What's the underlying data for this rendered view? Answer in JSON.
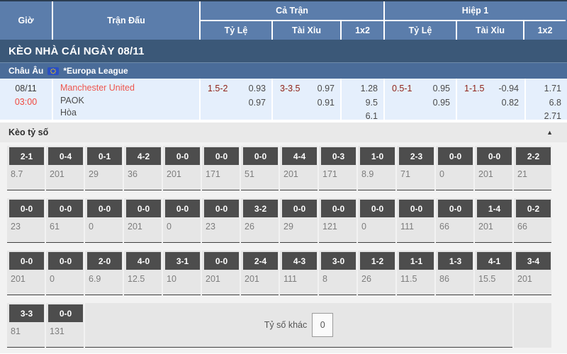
{
  "header": {
    "time_label": "Giờ",
    "match_label": "Trận Đấu",
    "groups": [
      {
        "label": "Cả Trận",
        "cols": [
          "Tỷ Lệ",
          "Tài Xỉu",
          "1x2"
        ]
      },
      {
        "label": "Hiệp 1",
        "cols": [
          "Tỷ Lệ",
          "Tài Xỉu",
          "1x2"
        ]
      }
    ]
  },
  "section_title": "KÈO NHÀ CÁI NGÀY 08/11",
  "league_bar": {
    "region": "Châu Âu",
    "flag_icon": "eu-flag-icon",
    "league": "*Europa League"
  },
  "match": {
    "date": "08/11",
    "time": "03:00",
    "teams": [
      "Manchester United",
      "PAOK",
      "Hòa"
    ],
    "full": {
      "handicap": {
        "line": "1.5-2",
        "odds": [
          "0.93",
          "0.97"
        ]
      },
      "ou": {
        "line": "3-3.5",
        "odds": [
          "0.97",
          "0.91"
        ]
      },
      "oneXtwo": [
        "1.28",
        "9.5",
        "6.1"
      ]
    },
    "half": {
      "handicap": {
        "line": "0.5-1",
        "odds": [
          "0.95",
          "0.95"
        ]
      },
      "ou": {
        "line": "1-1.5",
        "odds": [
          "-0.94",
          "0.82"
        ]
      },
      "oneXtwo": [
        "1.71",
        "6.8",
        "2.71"
      ]
    }
  },
  "score_section": {
    "title": "Kèo tỷ số",
    "collapse_icon": "▲",
    "rows": [
      [
        {
          "score": "2-1",
          "odds": "8.7"
        },
        {
          "score": "0-4",
          "odds": "201"
        },
        {
          "score": "0-1",
          "odds": "29"
        },
        {
          "score": "4-2",
          "odds": "36"
        },
        {
          "score": "0-0",
          "odds": "201"
        },
        {
          "score": "0-0",
          "odds": "171"
        },
        {
          "score": "0-0",
          "odds": "51"
        },
        {
          "score": "4-4",
          "odds": "201"
        },
        {
          "score": "0-3",
          "odds": "171"
        },
        {
          "score": "1-0",
          "odds": "8.9"
        },
        {
          "score": "2-3",
          "odds": "71"
        },
        {
          "score": "0-0",
          "odds": "0"
        },
        {
          "score": "0-0",
          "odds": "201"
        },
        {
          "score": "2-2",
          "odds": "21"
        }
      ],
      [
        {
          "score": "0-0",
          "odds": "23"
        },
        {
          "score": "0-0",
          "odds": "61"
        },
        {
          "score": "0-0",
          "odds": "0"
        },
        {
          "score": "0-0",
          "odds": "201"
        },
        {
          "score": "0-0",
          "odds": "0"
        },
        {
          "score": "0-0",
          "odds": "23"
        },
        {
          "score": "3-2",
          "odds": "26"
        },
        {
          "score": "0-0",
          "odds": "29"
        },
        {
          "score": "0-0",
          "odds": "121"
        },
        {
          "score": "0-0",
          "odds": "0"
        },
        {
          "score": "0-0",
          "odds": "111"
        },
        {
          "score": "0-0",
          "odds": "66"
        },
        {
          "score": "1-4",
          "odds": "201"
        },
        {
          "score": "0-2",
          "odds": "66"
        }
      ],
      [
        {
          "score": "0-0",
          "odds": "201"
        },
        {
          "score": "0-0",
          "odds": "0"
        },
        {
          "score": "2-0",
          "odds": "6.9"
        },
        {
          "score": "4-0",
          "odds": "12.5"
        },
        {
          "score": "3-1",
          "odds": "10"
        },
        {
          "score": "0-0",
          "odds": "201"
        },
        {
          "score": "2-4",
          "odds": "201"
        },
        {
          "score": "4-3",
          "odds": "111"
        },
        {
          "score": "3-0",
          "odds": "8"
        },
        {
          "score": "1-2",
          "odds": "26"
        },
        {
          "score": "1-1",
          "odds": "11.5"
        },
        {
          "score": "1-3",
          "odds": "86"
        },
        {
          "score": "4-1",
          "odds": "15.5"
        },
        {
          "score": "3-4",
          "odds": "201"
        }
      ]
    ],
    "last_row_scores": [
      {
        "score": "3-3",
        "odds": "81"
      },
      {
        "score": "0-0",
        "odds": "131"
      }
    ],
    "other_score": {
      "label": "Tỷ số khác",
      "value": "0"
    }
  },
  "colors": {
    "header_blue": "#5b7dab",
    "title_bar": "#3b5878",
    "league_bar": "#4a6c99",
    "match_row_bg": "#e5effc",
    "handicap_red": "#8f2318",
    "team_red": "#ee564e",
    "badge_gray": "#4d4d4d"
  }
}
